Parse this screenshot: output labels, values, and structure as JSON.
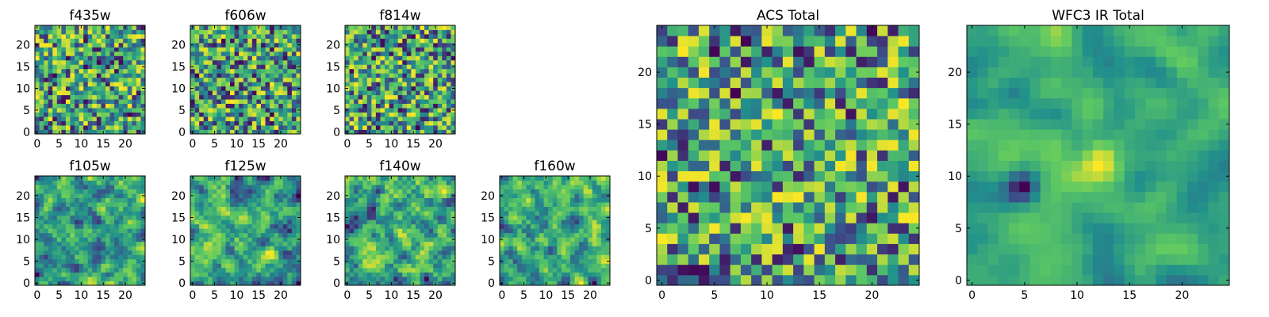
{
  "figure": {
    "colormap": "viridis",
    "colormap_stops": [
      "#440154",
      "#3b528b",
      "#21918c",
      "#5ec962",
      "#fde725"
    ],
    "axis_color": "#000000",
    "background": "#ffffff"
  },
  "chart_data": [
    {
      "type": "heatmap",
      "title": "f435w",
      "grid_size": 25,
      "xlim": [
        0,
        24
      ],
      "ylim": [
        0,
        24
      ],
      "x_ticks": [
        0,
        5,
        10,
        15,
        20
      ],
      "y_ticks": [
        0,
        5,
        10,
        15,
        20
      ],
      "pattern": "pixel-scale noise",
      "value_range": [
        0,
        1
      ],
      "smoothing": 0,
      "seed": 11
    },
    {
      "type": "heatmap",
      "title": "f606w",
      "grid_size": 25,
      "xlim": [
        0,
        24
      ],
      "ylim": [
        0,
        24
      ],
      "x_ticks": [
        0,
        5,
        10,
        15,
        20
      ],
      "y_ticks": [
        0,
        5,
        10,
        15,
        20
      ],
      "pattern": "pixel-scale noise",
      "value_range": [
        0,
        1
      ],
      "smoothing": 0,
      "seed": 23
    },
    {
      "type": "heatmap",
      "title": "f814w",
      "grid_size": 25,
      "xlim": [
        0,
        24
      ],
      "ylim": [
        0,
        24
      ],
      "x_ticks": [
        0,
        5,
        10,
        15,
        20
      ],
      "y_ticks": [
        0,
        5,
        10,
        15,
        20
      ],
      "pattern": "pixel-scale noise",
      "value_range": [
        0,
        1
      ],
      "smoothing": 0,
      "seed": 37
    },
    {
      "type": "heatmap",
      "title": "f105w",
      "grid_size": 25,
      "xlim": [
        0,
        24
      ],
      "ylim": [
        0,
        24
      ],
      "x_ticks": [
        0,
        5,
        10,
        15,
        20
      ],
      "y_ticks": [
        0,
        5,
        10,
        15,
        20
      ],
      "pattern": "correlated noise",
      "value_range": [
        0,
        1
      ],
      "smoothing": 1,
      "seed": 41
    },
    {
      "type": "heatmap",
      "title": "f125w",
      "grid_size": 25,
      "xlim": [
        0,
        24
      ],
      "ylim": [
        0,
        24
      ],
      "x_ticks": [
        0,
        5,
        10,
        15,
        20
      ],
      "y_ticks": [
        0,
        5,
        10,
        15,
        20
      ],
      "pattern": "correlated noise",
      "value_range": [
        0,
        1
      ],
      "smoothing": 1,
      "seed": 53
    },
    {
      "type": "heatmap",
      "title": "f140w",
      "grid_size": 25,
      "xlim": [
        0,
        24
      ],
      "ylim": [
        0,
        24
      ],
      "x_ticks": [
        0,
        5,
        10,
        15,
        20
      ],
      "y_ticks": [
        0,
        5,
        10,
        15,
        20
      ],
      "pattern": "correlated noise, bright centre",
      "value_range": [
        0,
        1
      ],
      "smoothing": 1,
      "seed": 67
    },
    {
      "type": "heatmap",
      "title": "f160w",
      "grid_size": 25,
      "xlim": [
        0,
        24
      ],
      "ylim": [
        0,
        24
      ],
      "x_ticks": [
        0,
        5,
        10,
        15,
        20
      ],
      "y_ticks": [
        0,
        5,
        10,
        15,
        20
      ],
      "pattern": "correlated noise",
      "value_range": [
        0,
        1
      ],
      "smoothing": 1,
      "seed": 79
    },
    {
      "type": "heatmap",
      "title": "ACS Total",
      "grid_size": 25,
      "xlim": [
        0,
        24
      ],
      "ylim": [
        0,
        24
      ],
      "x_ticks": [
        0,
        5,
        10,
        15,
        20
      ],
      "y_ticks": [
        0,
        5,
        10,
        15,
        20
      ],
      "pattern": "pixel-scale noise",
      "value_range": [
        0,
        1
      ],
      "smoothing": 0,
      "seed": 97
    },
    {
      "type": "heatmap",
      "title": "WFC3 IR Total",
      "grid_size": 25,
      "xlim": [
        0,
        24
      ],
      "ylim": [
        0,
        24
      ],
      "x_ticks": [
        0,
        5,
        10,
        15,
        20
      ],
      "y_ticks": [
        0,
        5,
        10,
        15,
        20
      ],
      "pattern": "smooth noise, bright blob near (12, 11), dark blob near (5, 9)",
      "value_range": [
        0,
        1
      ],
      "smoothing": 2,
      "blob_bright": [
        12,
        11
      ],
      "blob_dark": [
        5,
        9
      ],
      "seed": 101
    }
  ]
}
